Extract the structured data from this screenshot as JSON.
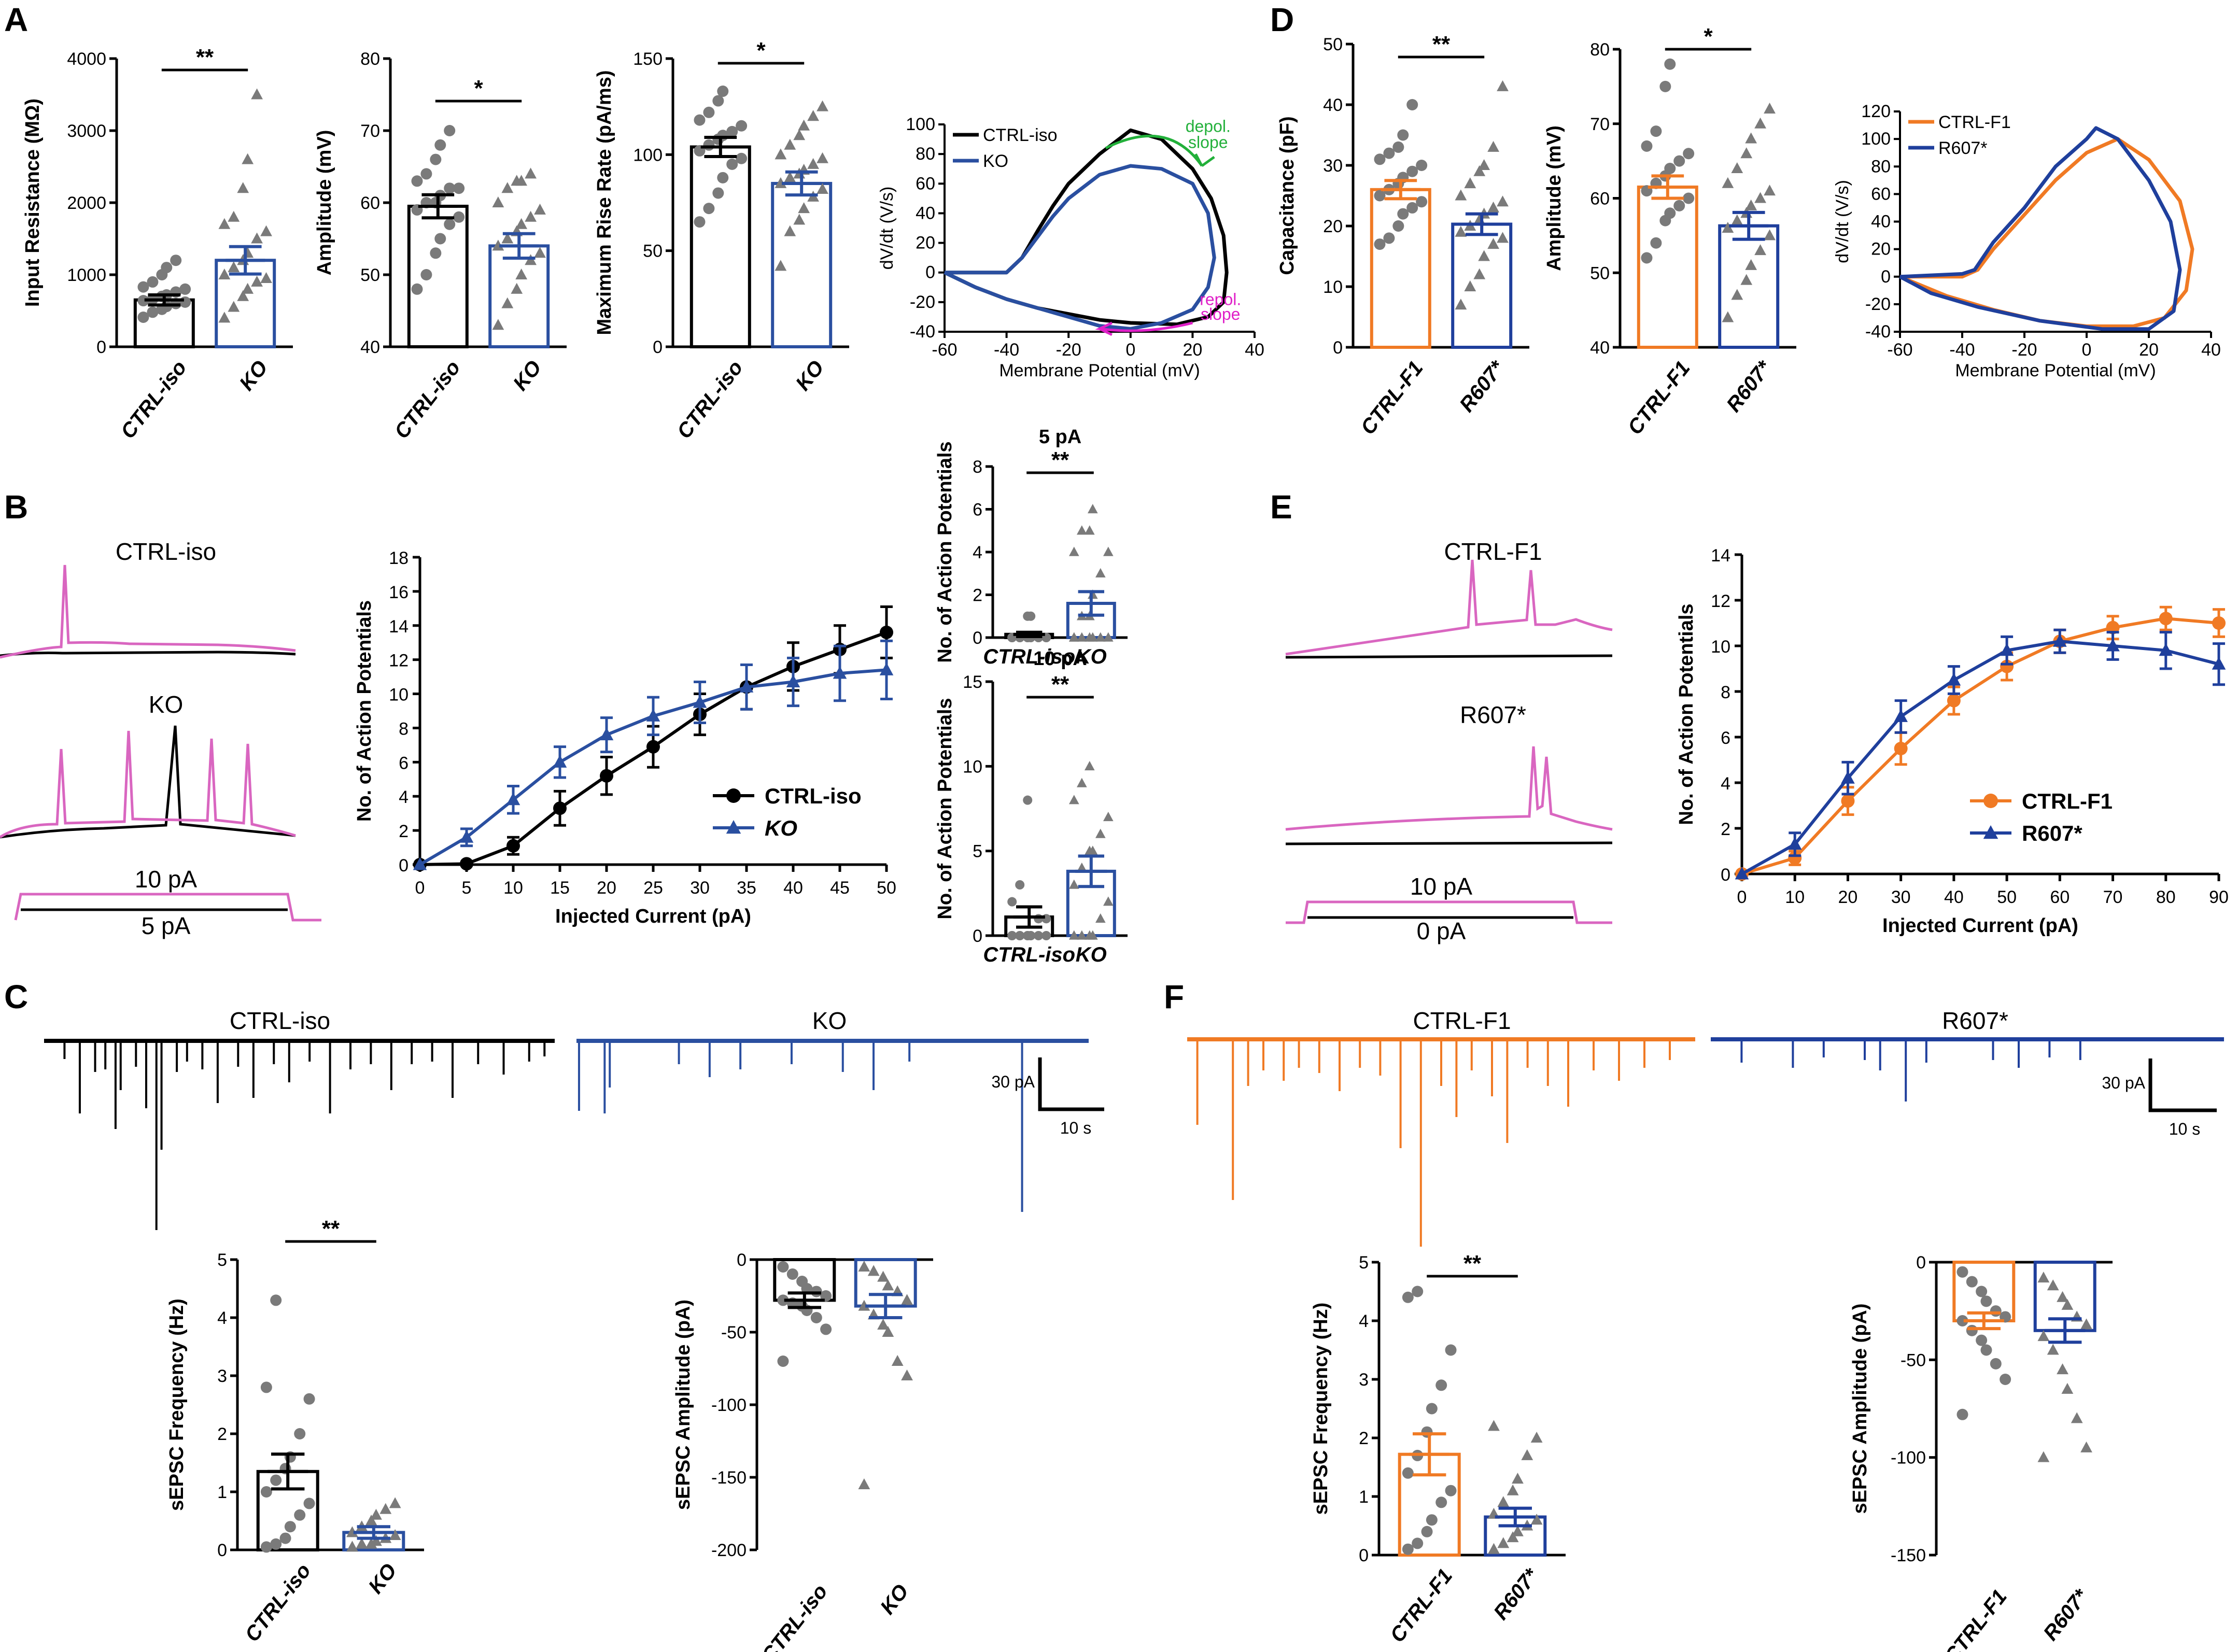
{
  "colors": {
    "ctrl_iso": "#000000",
    "ko": "#2a4fa0",
    "ctrl_f1": "#f07a24",
    "r607": "#1f3f9c",
    "pink": "#d966c0",
    "green": "#22b03a",
    "magenta": "#e020c8",
    "grey_dot": "#7a7a7a"
  },
  "panel_labels": [
    "A",
    "B",
    "C",
    "D",
    "E",
    "F"
  ],
  "chart_data": [
    {
      "id": "A1",
      "type": "bar",
      "categories": [
        "CTRL-iso",
        "KO"
      ],
      "values": [
        650,
        1200
      ],
      "errors": [
        70,
        190
      ],
      "ylabel": "Input Resistance (MΩ)",
      "ylim": [
        0,
        4000
      ],
      "yticks": [
        0,
        1000,
        2000,
        3000,
        4000
      ],
      "significance": "**",
      "points": [
        [
          410,
          480,
          520,
          560,
          600,
          620,
          640,
          660,
          700,
          720,
          760,
          800,
          830,
          900,
          1000,
          1100,
          1200
        ],
        [
          400,
          550,
          700,
          800,
          900,
          950,
          1000,
          1100,
          1200,
          1300,
          1500,
          1600,
          1700,
          1800,
          2200,
          2600,
          3500
        ]
      ]
    },
    {
      "id": "A2",
      "type": "bar",
      "categories": [
        "CTRL-iso",
        "KO"
      ],
      "values": [
        59.5,
        54
      ],
      "errors": [
        1.6,
        1.7
      ],
      "ylabel": "Amplitude (mV)",
      "ylim": [
        40,
        80
      ],
      "yticks": [
        40,
        50,
        60,
        70,
        80
      ],
      "significance": "*",
      "points": [
        [
          48,
          50,
          53,
          55,
          57,
          58,
          59,
          60,
          60,
          61,
          62,
          62,
          63,
          64,
          66,
          68,
          70
        ],
        [
          43,
          46,
          48,
          50,
          52,
          53,
          54,
          55,
          56,
          57,
          58,
          59,
          60,
          62,
          63,
          63,
          64
        ]
      ]
    },
    {
      "id": "A3",
      "type": "bar",
      "categories": [
        "CTRL-iso",
        "KO"
      ],
      "values": [
        104,
        85
      ],
      "errors": [
        5,
        6
      ],
      "ylabel": "Maximum Rise Rate (pA/ms)",
      "ylim": [
        0,
        150
      ],
      "yticks": [
        0,
        50,
        100,
        150
      ],
      "significance": "*",
      "points": [
        [
          65,
          72,
          80,
          88,
          95,
          98,
          102,
          105,
          108,
          110,
          112,
          115,
          118,
          122,
          128,
          133
        ],
        [
          42,
          60,
          66,
          72,
          78,
          82,
          85,
          88,
          90,
          92,
          95,
          98,
          100,
          105,
          110,
          115,
          120,
          125
        ]
      ]
    },
    {
      "id": "A4",
      "type": "line",
      "xlabel": "Membrane Potential (mV)",
      "ylabel": "dV/dt (V/s)",
      "xlim": [
        -60,
        40
      ],
      "ylim": [
        -40,
        100
      ],
      "xticks": [
        -60,
        -40,
        -20,
        0,
        20,
        40
      ],
      "yticks": [
        -40,
        -20,
        0,
        20,
        40,
        60,
        80,
        100
      ],
      "series": [
        {
          "name": "CTRL-iso",
          "x": [
            -60,
            -45,
            -40,
            -35,
            -30,
            -25,
            -20,
            -10,
            0,
            10,
            20,
            26,
            30,
            31,
            30,
            25,
            15,
            0,
            -10,
            -20,
            -30,
            -40,
            -50,
            -60
          ],
          "y": [
            0,
            0,
            0,
            10,
            28,
            45,
            60,
            80,
            96,
            90,
            70,
            50,
            25,
            0,
            -20,
            -30,
            -35,
            -34,
            -32,
            -28,
            -24,
            -18,
            -10,
            0
          ]
        },
        {
          "name": "KO",
          "x": [
            -60,
            -45,
            -40,
            -35,
            -30,
            -25,
            -20,
            -10,
            0,
            10,
            20,
            25,
            27,
            25,
            20,
            10,
            0,
            -10,
            -20,
            -30,
            -40,
            -50,
            -60
          ],
          "y": [
            0,
            0,
            0,
            10,
            24,
            38,
            50,
            66,
            72,
            70,
            60,
            40,
            10,
            -10,
            -25,
            -34,
            -38,
            -36,
            -30,
            -24,
            -18,
            -10,
            0
          ]
        }
      ],
      "annotations": [
        "depol. slope",
        "repol. slope"
      ]
    },
    {
      "id": "B2",
      "type": "line",
      "xlabel": "Injected Current (pA)",
      "ylabel": "No. of Action Potentials",
      "xlim": [
        0,
        50
      ],
      "ylim": [
        0,
        18
      ],
      "xticks": [
        0,
        5,
        10,
        15,
        20,
        25,
        30,
        35,
        40,
        45,
        50
      ],
      "yticks": [
        0,
        2,
        4,
        6,
        8,
        10,
        12,
        14,
        16,
        18
      ],
      "series": [
        {
          "name": "CTRL-iso",
          "x": [
            0,
            5,
            10,
            15,
            20,
            25,
            30,
            35,
            40,
            45,
            50
          ],
          "y": [
            0,
            0.05,
            1.1,
            3.3,
            5.2,
            6.9,
            8.8,
            10.4,
            11.6,
            12.6,
            13.6
          ],
          "err": [
            0,
            0.1,
            0.5,
            1.0,
            1.1,
            1.2,
            1.2,
            1.3,
            1.4,
            1.4,
            1.5
          ]
        },
        {
          "name": "KO",
          "x": [
            0,
            5,
            10,
            15,
            20,
            25,
            30,
            35,
            40,
            45,
            50
          ],
          "y": [
            0,
            1.6,
            3.8,
            6.0,
            7.6,
            8.7,
            9.5,
            10.4,
            10.7,
            11.2,
            11.4
          ],
          "err": [
            0,
            0.5,
            0.8,
            0.9,
            1.0,
            1.1,
            1.2,
            1.3,
            1.4,
            1.6,
            1.7
          ]
        }
      ]
    },
    {
      "id": "B3",
      "type": "bar",
      "title": "5 pA",
      "categories": [
        "CTRL-iso",
        "KO"
      ],
      "values": [
        0.15,
        1.6
      ],
      "errors": [
        0.1,
        0.55
      ],
      "ylabel": "No. of Action Potentials",
      "ylim": [
        0,
        8
      ],
      "yticks": [
        0,
        2,
        4,
        6,
        8
      ],
      "significance": "**",
      "points": [
        [
          0,
          0,
          0,
          0,
          0,
          0,
          0,
          0,
          0,
          0,
          0,
          0,
          0,
          0,
          1,
          1
        ],
        [
          0,
          0,
          0,
          0,
          0,
          0,
          0,
          1,
          1,
          2,
          3,
          4,
          4,
          5,
          5,
          6
        ]
      ]
    },
    {
      "id": "B4",
      "type": "bar",
      "title": "10 pA",
      "categories": [
        "CTRL-iso",
        "KO"
      ],
      "values": [
        1.1,
        3.8
      ],
      "errors": [
        0.6,
        0.9
      ],
      "ylabel": "No. of Action Potentials",
      "ylim": [
        0,
        15
      ],
      "yticks": [
        0,
        5,
        10,
        15
      ],
      "significance": "**",
      "points": [
        [
          0,
          0,
          0,
          0,
          0,
          0,
          0,
          0,
          0,
          0,
          1,
          1,
          2,
          3,
          8
        ],
        [
          0,
          0,
          0,
          0,
          1,
          2,
          3,
          4,
          5,
          5,
          6,
          7,
          8,
          9,
          10
        ]
      ]
    },
    {
      "id": "C2",
      "type": "bar",
      "categories": [
        "CTRL-iso",
        "KO"
      ],
      "values": [
        1.35,
        0.3
      ],
      "errors": [
        0.3,
        0.1
      ],
      "ylabel": "sEPSC Frequency (Hz)",
      "ylim": [
        0,
        5
      ],
      "yticks": [
        0,
        1,
        2,
        3,
        4,
        5
      ],
      "significance": "**",
      "points": [
        [
          0.05,
          0.1,
          0.2,
          0.4,
          0.6,
          0.8,
          1.0,
          1.2,
          1.4,
          1.6,
          2.0,
          2.6,
          2.8,
          4.3
        ],
        [
          0.05,
          0.1,
          0.1,
          0.15,
          0.2,
          0.25,
          0.3,
          0.4,
          0.5,
          0.6,
          0.7,
          0.8
        ]
      ]
    },
    {
      "id": "C3",
      "type": "bar",
      "categories": [
        "CTRL-iso",
        "KO"
      ],
      "values": [
        -28,
        -32
      ],
      "errors": [
        5,
        8
      ],
      "ylabel": "sEPSC Amplitude (pA)",
      "ylim": [
        -200,
        0
      ],
      "yticks": [
        0,
        -50,
        -100,
        -150,
        -200
      ],
      "points": [
        [
          -5,
          -10,
          -15,
          -20,
          -22,
          -25,
          -28,
          -30,
          -32,
          -35,
          -40,
          -48,
          -70
        ],
        [
          -5,
          -8,
          -12,
          -18,
          -22,
          -28,
          -32,
          -38,
          -45,
          -50,
          -70,
          -80,
          -155
        ]
      ]
    },
    {
      "id": "D1",
      "type": "bar",
      "categories": [
        "CTRL-F1",
        "R607*"
      ],
      "values": [
        26,
        20.3
      ],
      "errors": [
        1.5,
        1.7
      ],
      "ylabel": "Capacitance (pF)",
      "ylim": [
        0,
        50
      ],
      "yticks": [
        0,
        10,
        20,
        30,
        40,
        50
      ],
      "significance": "**",
      "points": [
        [
          17,
          18,
          20,
          22,
          23,
          24,
          25,
          26,
          27,
          28,
          29,
          30,
          31,
          32,
          33,
          35,
          40
        ],
        [
          7,
          10,
          12,
          15,
          17,
          18,
          19,
          20,
          21,
          22,
          23,
          24,
          25,
          27,
          29,
          30,
          33,
          43
        ]
      ]
    },
    {
      "id": "D2",
      "type": "bar",
      "categories": [
        "CTRL-F1",
        "R607*"
      ],
      "values": [
        61.5,
        56.3
      ],
      "errors": [
        1.5,
        1.8
      ],
      "ylabel": "Amplitude (mV)",
      "ylim": [
        40,
        80
      ],
      "yticks": [
        40,
        50,
        60,
        70,
        80
      ],
      "significance": "*",
      "points": [
        [
          52,
          54,
          57,
          58,
          59,
          60,
          61,
          62,
          63,
          64,
          65,
          66,
          67,
          69,
          75,
          78
        ],
        [
          44,
          47,
          49,
          51,
          53,
          55,
          56,
          57,
          58,
          59,
          60,
          61,
          62,
          64,
          66,
          68,
          70,
          72
        ]
      ]
    },
    {
      "id": "D3",
      "type": "line",
      "xlabel": "Membrane Potential (mV)",
      "ylabel": "dV/dt (V/s)",
      "xlim": [
        -60,
        40
      ],
      "ylim": [
        -40,
        120
      ],
      "xticks": [
        -60,
        -40,
        -20,
        0,
        20,
        40
      ],
      "yticks": [
        -40,
        -20,
        0,
        20,
        40,
        60,
        80,
        100,
        120
      ],
      "series": [
        {
          "name": "CTRL-F1",
          "x": [
            -60,
            -40,
            -35,
            -30,
            -20,
            -10,
            0,
            10,
            20,
            30,
            34,
            32,
            25,
            15,
            0,
            -15,
            -30,
            -45,
            -60
          ],
          "y": [
            0,
            0,
            5,
            20,
            45,
            70,
            90,
            100,
            85,
            55,
            20,
            -10,
            -30,
            -36,
            -36,
            -32,
            -24,
            -14,
            0
          ]
        },
        {
          "name": "R607*",
          "x": [
            -60,
            -40,
            -36,
            -30,
            -20,
            -10,
            0,
            3,
            10,
            20,
            27,
            30,
            28,
            20,
            5,
            -15,
            -35,
            -50,
            -60
          ],
          "y": [
            0,
            2,
            5,
            25,
            50,
            80,
            100,
            108,
            100,
            70,
            40,
            5,
            -25,
            -38,
            -38,
            -32,
            -22,
            -12,
            0
          ]
        }
      ]
    },
    {
      "id": "E2",
      "type": "line",
      "xlabel": "Injected Current (pA)",
      "ylabel": "No. of Action Potentials",
      "xlim": [
        0,
        90
      ],
      "ylim": [
        0,
        14
      ],
      "xticks": [
        0,
        10,
        20,
        30,
        40,
        50,
        60,
        70,
        80,
        90
      ],
      "yticks": [
        0,
        2,
        4,
        6,
        8,
        10,
        12,
        14
      ],
      "series": [
        {
          "name": "CTRL-F1",
          "x": [
            0,
            10,
            20,
            30,
            40,
            50,
            60,
            70,
            80,
            90
          ],
          "y": [
            0,
            0.7,
            3.2,
            5.5,
            7.6,
            9.1,
            10.2,
            10.8,
            11.2,
            11.0
          ],
          "err": [
            0,
            0.3,
            0.6,
            0.7,
            0.6,
            0.6,
            0.5,
            0.5,
            0.5,
            0.6
          ]
        },
        {
          "name": "R607*",
          "x": [
            0,
            10,
            20,
            30,
            40,
            50,
            60,
            70,
            80,
            90
          ],
          "y": [
            0,
            1.3,
            4.2,
            6.9,
            8.5,
            9.8,
            10.2,
            10.0,
            9.8,
            9.2
          ],
          "err": [
            0,
            0.5,
            0.7,
            0.7,
            0.6,
            0.6,
            0.5,
            0.6,
            0.8,
            0.9
          ]
        }
      ]
    },
    {
      "id": "F2",
      "type": "bar",
      "categories": [
        "CTRL-F1",
        "R607*"
      ],
      "values": [
        1.72,
        0.65
      ],
      "errors": [
        0.35,
        0.15
      ],
      "ylabel": "sEPSC Frequency (Hz)",
      "ylim": [
        0,
        5
      ],
      "yticks": [
        0,
        1,
        2,
        3,
        4,
        5
      ],
      "significance": "**",
      "points": [
        [
          0.1,
          0.2,
          0.4,
          0.6,
          0.9,
          1.1,
          1.4,
          1.7,
          2.1,
          2.5,
          2.9,
          3.5,
          4.4,
          4.5
        ],
        [
          0.1,
          0.2,
          0.3,
          0.4,
          0.5,
          0.6,
          0.7,
          0.9,
          1.1,
          1.3,
          1.7,
          2.0,
          2.2
        ]
      ]
    },
    {
      "id": "F3",
      "type": "bar",
      "categories": [
        "CTRL-F1",
        "R607*"
      ],
      "values": [
        -30,
        -35
      ],
      "errors": [
        4,
        6
      ],
      "ylabel": "sEPSC Amplitude (pA)",
      "ylim": [
        -150,
        0
      ],
      "yticks": [
        0,
        -50,
        -100,
        -150
      ],
      "points": [
        [
          -5,
          -10,
          -15,
          -20,
          -25,
          -28,
          -30,
          -35,
          -40,
          -45,
          -52,
          -60,
          -78
        ],
        [
          -8,
          -12,
          -18,
          -22,
          -28,
          -32,
          -38,
          -45,
          -55,
          -65,
          -80,
          -95,
          -100
        ]
      ]
    }
  ],
  "traces": {
    "B_ctrl_label": "CTRL-iso",
    "B_ko_label": "KO",
    "B_step_10": "10 pA",
    "B_step_5": "5 pA",
    "C_ctrl_label": "CTRL-iso",
    "C_ko_label": "KO",
    "C_scale_y": "30 pA",
    "C_scale_x": "10 s",
    "E_ctrl_label": "CTRL-F1",
    "E_r607_label": "R607*",
    "E_step_10": "10 pA",
    "E_step_0": "0 pA",
    "F_ctrl_label": "CTRL-F1",
    "F_r607_label": "R607*",
    "F_scale_y": "30 pA",
    "F_scale_x": "10 s"
  }
}
